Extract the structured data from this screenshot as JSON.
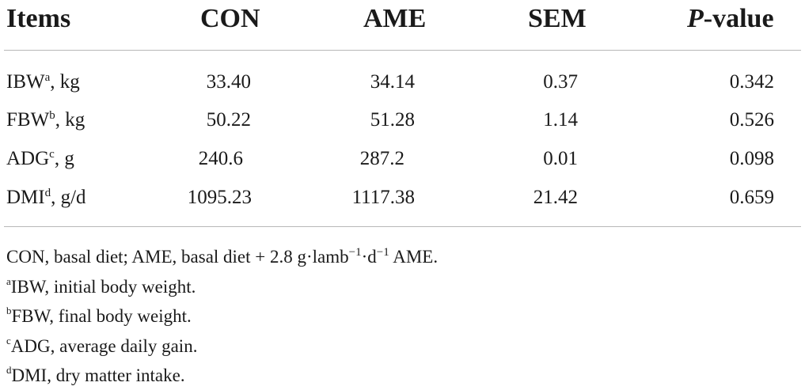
{
  "table": {
    "headers": {
      "items": "Items",
      "con": "CON",
      "ame": "AME",
      "sem": "SEM",
      "p_italic": "P",
      "p_rest": "-value"
    },
    "rows": [
      {
        "label": "IBW",
        "sup": "a",
        "unit": ", kg",
        "con": "33.40",
        "ame": "34.14",
        "sem": "0.37",
        "p": "0.342"
      },
      {
        "label": "FBW",
        "sup": "b",
        "unit": ", kg",
        "con": "50.22",
        "ame": "51.28",
        "sem": "1.14",
        "p": "0.526"
      },
      {
        "label": "ADG",
        "sup": "c",
        "unit": ", g",
        "con": "240.6",
        "ame": "287.2",
        "sem": "0.01",
        "p": "0.098"
      },
      {
        "label": "DMI",
        "sup": "d",
        "unit": ", g/d",
        "con": "1095.23",
        "ame": "1117.38",
        "sem": "21.42",
        "p": "0.659"
      }
    ]
  },
  "footnotes": {
    "main_pre": "CON, basal diet; AME, basal diet + 2.8 g·lamb",
    "main_sup1": "−1",
    "main_mid": "·d",
    "main_sup2": "−1",
    "main_post": " AME.",
    "notes": [
      {
        "sup": "a",
        "text": "IBW, initial body weight."
      },
      {
        "sup": "b",
        "text": "FBW, final body weight."
      },
      {
        "sup": "c",
        "text": "ADG, average daily gain."
      },
      {
        "sup": "d",
        "text": "DMI, dry matter intake."
      }
    ]
  }
}
